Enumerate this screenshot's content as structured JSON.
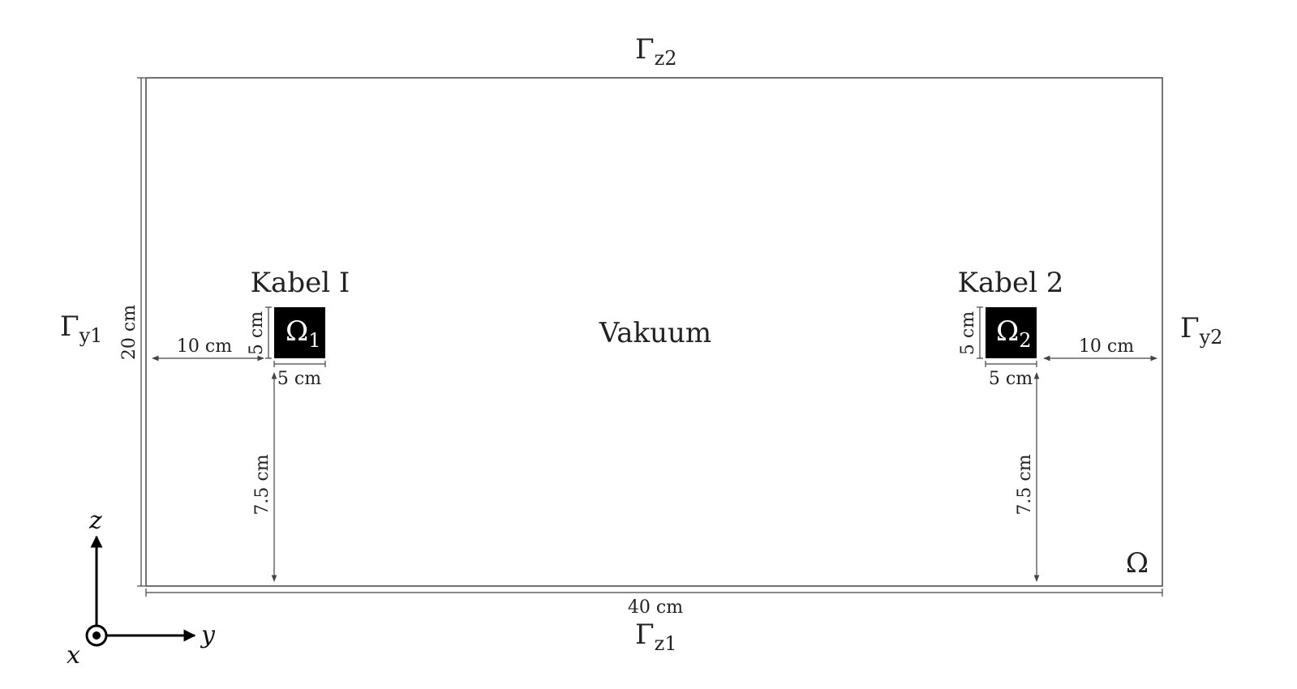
{
  "boundaries": {
    "top": {
      "symbol": "Γ",
      "subscript": "z2"
    },
    "bottom": {
      "symbol": "Γ",
      "subscript": "z1"
    },
    "left": {
      "symbol": "Γ",
      "subscript": "y1"
    },
    "right": {
      "symbol": "Γ",
      "subscript": "y2"
    }
  },
  "domain_label": "Ω",
  "medium_label": "Vakuum",
  "cables": [
    {
      "title": "Kabel I",
      "region_symbol": "Ω",
      "region_subscript": "1"
    },
    {
      "title": "Kabel 2",
      "region_symbol": "Ω",
      "region_subscript": "2"
    }
  ],
  "dimensions": {
    "height": "20 cm",
    "width": "40 cm",
    "cable1_offset_left": "10 cm",
    "cable1_height": "5 cm",
    "cable1_width": "5 cm",
    "cable1_elevation": "7.5 cm",
    "cable2_offset_right": "10 cm",
    "cable2_height": "5 cm",
    "cable2_width": "5 cm",
    "cable2_elevation": "7.5 cm"
  },
  "axes": {
    "vertical": "z",
    "horizontal": "y",
    "out_of_plane": "x"
  }
}
